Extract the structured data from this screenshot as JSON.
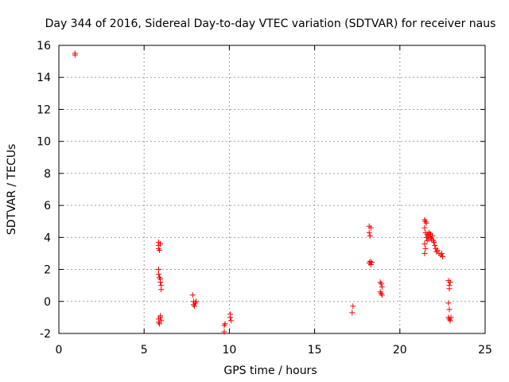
{
  "chart_data": {
    "type": "scatter",
    "title": "Day 344 of 2016, Sidereal Day-to-day VTEC variation (SDTVAR) for receiver naus",
    "xlabel": "GPS time / hours",
    "ylabel": "SDTVAR / TECUs",
    "xlim": [
      0,
      25
    ],
    "ylim": [
      -2,
      16
    ],
    "xticks": [
      0,
      5,
      10,
      15,
      20,
      25
    ],
    "yticks": [
      -2,
      0,
      2,
      4,
      6,
      8,
      10,
      12,
      14,
      16
    ],
    "grid": true,
    "marker": "+",
    "color": "#ff0000",
    "series": [
      {
        "name": "SDTVAR",
        "points": [
          [
            0.95,
            15.5
          ],
          [
            0.95,
            15.4
          ],
          [
            5.85,
            3.7
          ],
          [
            5.85,
            3.5
          ],
          [
            5.85,
            3.3
          ],
          [
            5.9,
            3.2
          ],
          [
            5.95,
            3.6
          ],
          [
            5.85,
            2.0
          ],
          [
            5.85,
            1.7
          ],
          [
            5.9,
            1.5
          ],
          [
            5.95,
            1.4
          ],
          [
            5.95,
            1.2
          ],
          [
            6.0,
            1.0
          ],
          [
            6.0,
            0.75
          ],
          [
            5.85,
            -1.1
          ],
          [
            5.85,
            -1.3
          ],
          [
            5.9,
            -1.4
          ],
          [
            5.95,
            -1.0
          ],
          [
            5.95,
            -0.9
          ],
          [
            6.0,
            -1.2
          ],
          [
            7.85,
            0.4
          ],
          [
            7.9,
            0.0
          ],
          [
            7.9,
            -0.2
          ],
          [
            7.95,
            -0.3
          ],
          [
            8.0,
            -0.1
          ],
          [
            8.05,
            0.0
          ],
          [
            9.7,
            -1.5
          ],
          [
            9.7,
            -1.9
          ],
          [
            9.75,
            -1.4
          ],
          [
            10.05,
            -0.8
          ],
          [
            10.05,
            -1.0
          ],
          [
            10.1,
            -1.2
          ],
          [
            17.25,
            -0.3
          ],
          [
            17.2,
            -0.7
          ],
          [
            18.2,
            4.7
          ],
          [
            18.2,
            4.3
          ],
          [
            18.25,
            4.1
          ],
          [
            18.3,
            4.6
          ],
          [
            18.2,
            2.4
          ],
          [
            18.25,
            2.5
          ],
          [
            18.3,
            2.3
          ],
          [
            18.35,
            2.45
          ],
          [
            18.85,
            1.2
          ],
          [
            18.9,
            1.1
          ],
          [
            18.95,
            0.9
          ],
          [
            18.85,
            0.6
          ],
          [
            18.9,
            0.5
          ],
          [
            18.95,
            0.4
          ],
          [
            21.45,
            5.1
          ],
          [
            21.5,
            5.0
          ],
          [
            21.55,
            4.9
          ],
          [
            21.45,
            4.6
          ],
          [
            21.5,
            4.3
          ],
          [
            21.55,
            4.0
          ],
          [
            21.6,
            4.2
          ],
          [
            21.65,
            4.1
          ],
          [
            21.7,
            3.9
          ],
          [
            21.75,
            4.2
          ],
          [
            21.8,
            4.0
          ],
          [
            21.85,
            3.9
          ],
          [
            21.9,
            4.1
          ],
          [
            21.95,
            3.8
          ],
          [
            22.0,
            3.7
          ],
          [
            21.45,
            3.6
          ],
          [
            21.5,
            3.3
          ],
          [
            21.45,
            3.0
          ],
          [
            21.6,
            3.8
          ],
          [
            21.7,
            4.3
          ],
          [
            21.8,
            4.2
          ],
          [
            22.05,
            3.5
          ],
          [
            22.1,
            3.3
          ],
          [
            22.15,
            3.1
          ],
          [
            22.2,
            3.2
          ],
          [
            22.3,
            3.0
          ],
          [
            22.4,
            2.9
          ],
          [
            22.45,
            3.0
          ],
          [
            22.5,
            2.8
          ],
          [
            22.85,
            1.3
          ],
          [
            22.9,
            1.0
          ],
          [
            22.95,
            1.2
          ],
          [
            22.9,
            0.8
          ],
          [
            22.85,
            -0.1
          ],
          [
            22.9,
            -0.5
          ],
          [
            22.85,
            -1.0
          ],
          [
            22.9,
            -1.1
          ],
          [
            22.95,
            -1.2
          ],
          [
            23.0,
            -1.0
          ]
        ]
      }
    ]
  }
}
